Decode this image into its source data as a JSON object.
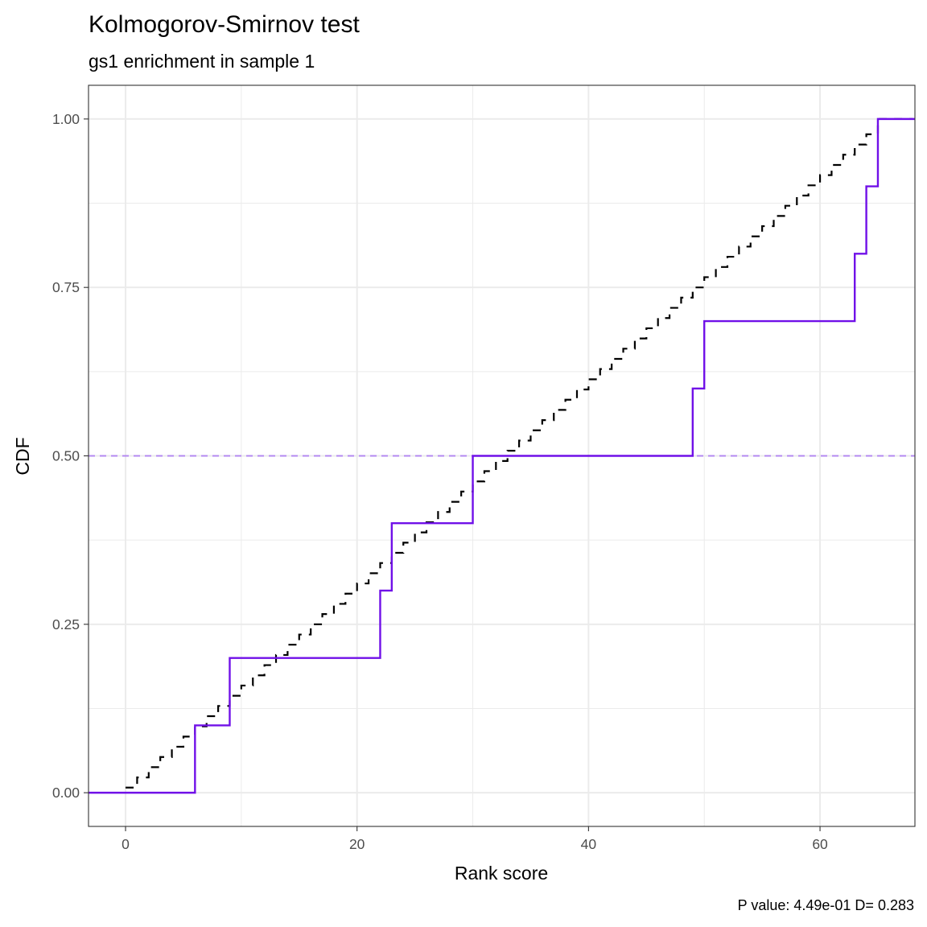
{
  "chart_data": {
    "type": "line",
    "title": "Kolmogorov-Smirnov test",
    "subtitle": "gs1 enrichment in sample 1",
    "xlabel": "Rank score",
    "ylabel": "CDF",
    "caption": "P value: 4.49e-01 D= 0.283",
    "xlim": [
      -3.2,
      68.2
    ],
    "ylim": [
      -0.05,
      1.05
    ],
    "x_ticks": [
      0,
      20,
      40,
      60
    ],
    "x_tick_labels": [
      "0",
      "20",
      "40",
      "60"
    ],
    "y_ticks": [
      0,
      0.25,
      0.5,
      0.75,
      1
    ],
    "y_tick_labels": [
      "0.00",
      "0.25",
      "0.50",
      "0.75",
      "1.00"
    ],
    "grid": true,
    "reference_line": {
      "y": 0.5,
      "color": "#b388f0",
      "style": "dashed"
    },
    "series": [
      {
        "style": "step",
        "color": "#000000",
        "dash": "dashed",
        "x": [
          0,
          1,
          2,
          3,
          4,
          5,
          6,
          7,
          8,
          9,
          10,
          11,
          12,
          13,
          14,
          15,
          16,
          17,
          18,
          19,
          20,
          21,
          22,
          23,
          24,
          25,
          26,
          27,
          28,
          29,
          30,
          31,
          32,
          33,
          34,
          35,
          36,
          37,
          38,
          39,
          40,
          41,
          42,
          43,
          44,
          45,
          46,
          47,
          48,
          49,
          50,
          51,
          52,
          53,
          54,
          55,
          56,
          57,
          58,
          59,
          60,
          61,
          62,
          63,
          64,
          65,
          68
        ],
        "y": [
          0.0076,
          0.0227,
          0.0379,
          0.053,
          0.0682,
          0.0833,
          0.0985,
          0.1136,
          0.1288,
          0.1439,
          0.1591,
          0.1742,
          0.1894,
          0.2045,
          0.2197,
          0.2348,
          0.25,
          0.2652,
          0.2803,
          0.2955,
          0.3106,
          0.3258,
          0.3409,
          0.3561,
          0.3712,
          0.3864,
          0.4015,
          0.4167,
          0.4318,
          0.447,
          0.4621,
          0.4773,
          0.4924,
          0.5076,
          0.5227,
          0.5379,
          0.553,
          0.5682,
          0.5833,
          0.5985,
          0.6136,
          0.6288,
          0.6439,
          0.6591,
          0.6742,
          0.6894,
          0.7045,
          0.7197,
          0.7348,
          0.75,
          0.7652,
          0.7803,
          0.7955,
          0.8106,
          0.8258,
          0.8409,
          0.8561,
          0.8712,
          0.8864,
          0.9015,
          0.9167,
          0.9318,
          0.947,
          0.9621,
          0.9773,
          1.0,
          1.0
        ]
      },
      {
        "style": "step",
        "color": "#7010e8",
        "dash": "solid",
        "x": [
          -3.2,
          6,
          9,
          22,
          23,
          30,
          49,
          50,
          63,
          64,
          65,
          68.2
        ],
        "y": [
          0.0,
          0.1,
          0.2,
          0.3,
          0.4,
          0.5,
          0.6,
          0.7,
          0.8,
          0.9,
          1.0,
          1.0
        ]
      }
    ]
  }
}
